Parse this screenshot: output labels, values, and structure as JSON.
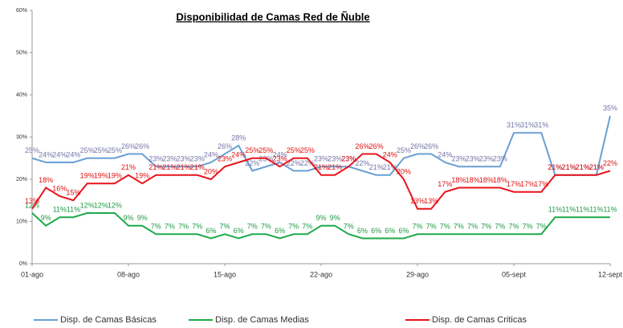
{
  "chart_data": {
    "type": "line",
    "title": "Disponibilidad de Camas Red de Ñuble",
    "categories": [
      "01-ago",
      null,
      null,
      null,
      null,
      null,
      null,
      "08-ago",
      null,
      null,
      null,
      null,
      null,
      null,
      "15-ago",
      null,
      null,
      null,
      null,
      null,
      null,
      "22-ago",
      null,
      null,
      null,
      null,
      null,
      null,
      "29-ago",
      null,
      null,
      null,
      null,
      null,
      null,
      "05-sept",
      null,
      null,
      null,
      null,
      null,
      null,
      "12-sept"
    ],
    "series": [
      {
        "name": "Disp. de Camas Básicas",
        "color": "#6a9fd4",
        "label_color": "#7474a8",
        "values": [
          25,
          24,
          24,
          24,
          25,
          25,
          25,
          26,
          26,
          23,
          23,
          23,
          23,
          24,
          26,
          28,
          22,
          23,
          24,
          22,
          22,
          23,
          23,
          23,
          22,
          21,
          21,
          25,
          26,
          26,
          24,
          23,
          23,
          23,
          23,
          31,
          31,
          31,
          21,
          21,
          21,
          21,
          35
        ],
        "value_labels": [
          "25%",
          "24%",
          "24%",
          "24%",
          "25%",
          "25%",
          "25%",
          "26%",
          "26%",
          "23%",
          "23%",
          "23%",
          "23%",
          "24%",
          "26%",
          "28%",
          "22%",
          "23%",
          "24%",
          "22%",
          "22%",
          "23%",
          "23%",
          "23%",
          "22%",
          "21%",
          "21%",
          "25%",
          "26%",
          "26%",
          "24%",
          "23%",
          "23%",
          "23%",
          "23%",
          "31%",
          "31%",
          "31%",
          "21%",
          "21%",
          "21%",
          "21%",
          "35%"
        ]
      },
      {
        "name": "Disp. de Camas Medias",
        "color": "#1faa4a",
        "label_color": "#1f9a45",
        "values": [
          12,
          9,
          11,
          11,
          12,
          12,
          12,
          9,
          9,
          7,
          7,
          7,
          7,
          6,
          7,
          6,
          7,
          7,
          6,
          7,
          7,
          9,
          9,
          7,
          6,
          6,
          6,
          6,
          7,
          7,
          7,
          7,
          7,
          7,
          7,
          7,
          7,
          7,
          11,
          11,
          11,
          11,
          11
        ],
        "value_labels": [
          "12%",
          "9%",
          "11%",
          "11%",
          "12%",
          "12%",
          "12%",
          "9%",
          "9%",
          "7%",
          "7%",
          "7%",
          "7%",
          "6%",
          "7%",
          "6%",
          "7%",
          "7%",
          "6%",
          "7%",
          "7%",
          "9%",
          "9%",
          "7%",
          "6%",
          "6%",
          "6%",
          "6%",
          "7%",
          "7%",
          "7%",
          "7%",
          "7%",
          "7%",
          "7%",
          "7%",
          "7%",
          "7%",
          "11%",
          "11%",
          "11%",
          "11%",
          "11%"
        ]
      },
      {
        "name": "Disp. de Camas Criticas",
        "color": "#e8141c",
        "label_color": "#e01010",
        "values": [
          13,
          18,
          16,
          15,
          19,
          19,
          19,
          21,
          19,
          21,
          21,
          21,
          21,
          20,
          23,
          24,
          25,
          25,
          23,
          25,
          25,
          21,
          21,
          23,
          26,
          26,
          24,
          20,
          13,
          13,
          17,
          18,
          18,
          18,
          18,
          17,
          17,
          17,
          21,
          21,
          21,
          21,
          22
        ],
        "value_labels": [
          "13%",
          "18%",
          "16%",
          "15%",
          "19%",
          "19%",
          "19%",
          "21%",
          "19%",
          "21%",
          "21%",
          "21%",
          "21%",
          "20%",
          "23%",
          "24%",
          "25%",
          "25%",
          "23%",
          "25%",
          "25%",
          "21%",
          "21%",
          "23%",
          "26%",
          "26%",
          "24%",
          "20%",
          "13%",
          "13%",
          "17%",
          "18%",
          "18%",
          "18%",
          "18%",
          "17%",
          "17%",
          "17%",
          "21%",
          "21%",
          "21%",
          "21%",
          "22%"
        ]
      }
    ],
    "ylim": [
      0,
      60
    ],
    "yticks": [
      {
        "value": 0,
        "label": "0%"
      },
      {
        "value": 10,
        "label": "10%"
      },
      {
        "value": 20,
        "label": "20%"
      },
      {
        "value": 30,
        "label": "30%"
      },
      {
        "value": 40,
        "label": "40%"
      },
      {
        "value": 50,
        "label": "50%"
      },
      {
        "value": 60,
        "label": "60%"
      }
    ],
    "legend": "bottom"
  }
}
